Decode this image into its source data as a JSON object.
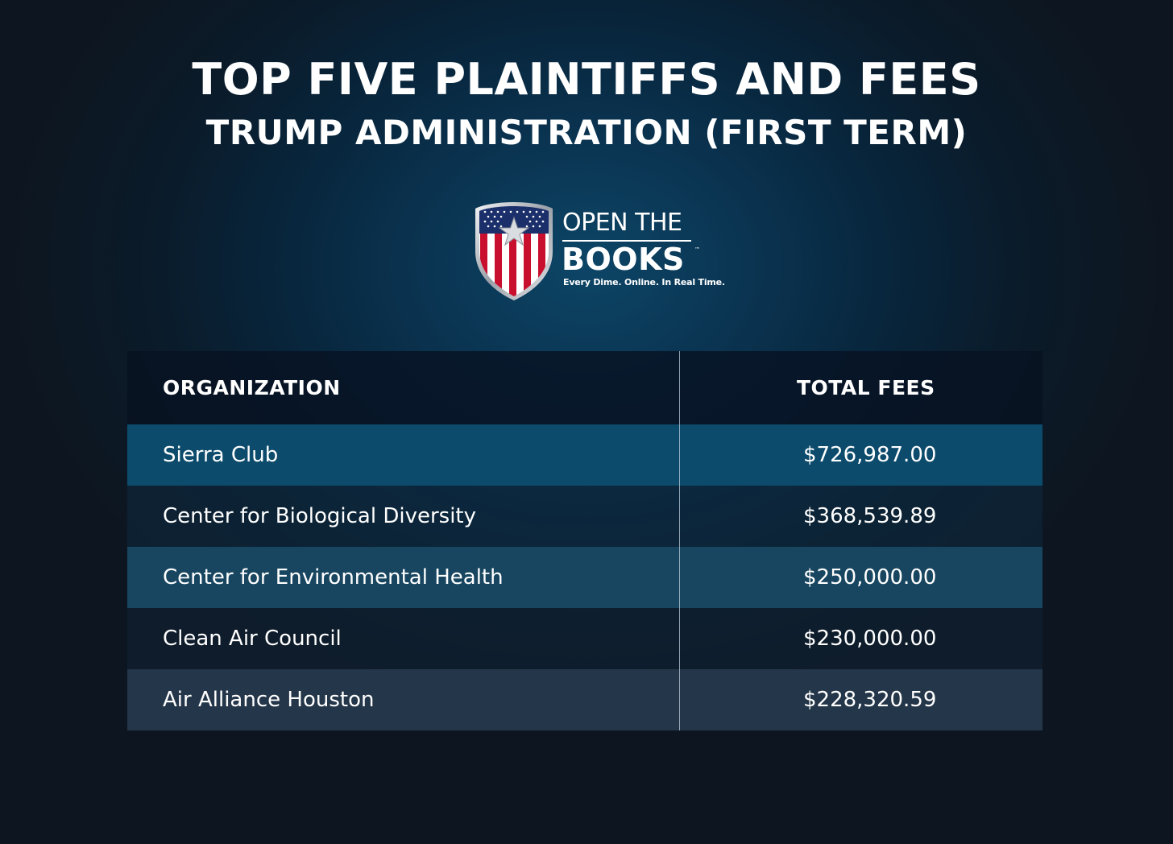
{
  "header": {
    "title": "TOP FIVE PLAINTIFFS AND FEES",
    "subtitle": "TRUMP ADMINISTRATION (FIRST TERM)"
  },
  "logo": {
    "line1": "OPEN THE",
    "line2": "BOOKS",
    "trademark": "™",
    "tagline": "Every Dime. Online. In Real Time.",
    "colors": {
      "red": "#c8102e",
      "blue": "#1b2f6b",
      "silver": "#c9ccd1"
    }
  },
  "colors": {
    "row_highlight": "#0d4b6c",
    "row_alt": "#184660",
    "row_last": "#243649",
    "header_bg": "#081222"
  },
  "chart_data": {
    "type": "table",
    "columns": [
      "ORGANIZATION",
      "TOTAL FEES"
    ],
    "rows": [
      {
        "organization": "Sierra Club",
        "total_fees": "$726,987.00",
        "value": 726987.0
      },
      {
        "organization": "Center for Biological Diversity",
        "total_fees": "$368,539.89",
        "value": 368539.89
      },
      {
        "organization": "Center for Environmental Health",
        "total_fees": "$250,000.00",
        "value": 250000.0
      },
      {
        "organization": "Clean Air Council",
        "total_fees": "$230,000.00",
        "value": 230000.0
      },
      {
        "organization": "Air Alliance Houston",
        "total_fees": "$228,320.59",
        "value": 228320.59
      }
    ]
  }
}
